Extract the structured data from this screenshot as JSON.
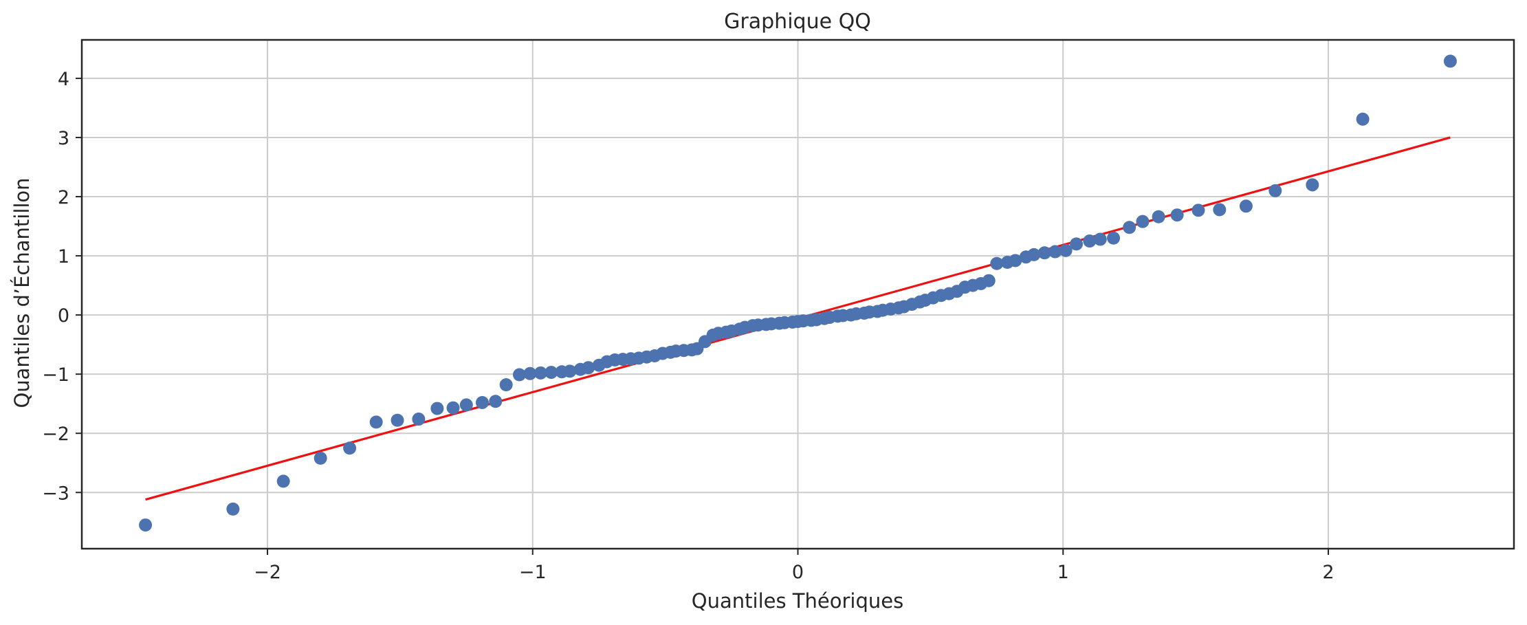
{
  "chart_data": {
    "type": "scatter",
    "title": "Graphique QQ",
    "xlabel": "Quantiles Théoriques",
    "ylabel": "Quantiles d’Échantillon",
    "xlim": [
      -2.7,
      2.7
    ],
    "ylim": [
      -3.95,
      4.65
    ],
    "xticks": [
      -2,
      -1,
      0,
      1,
      2
    ],
    "xtick_labels": [
      "−2",
      "−1",
      "0",
      "1",
      "2"
    ],
    "yticks": [
      -3,
      -2,
      -1,
      0,
      1,
      2,
      3,
      4
    ],
    "ytick_labels": [
      "−3",
      "−2",
      "−1",
      "0",
      "1",
      "2",
      "3",
      "4"
    ],
    "grid": true,
    "legend": "none",
    "colors": {
      "points": "#4c72b0",
      "line": "#ee1111",
      "grid": "#cccccc",
      "frame": "#262626"
    },
    "series": [
      {
        "type": "scatter",
        "points": [
          [
            -2.46,
            -3.55
          ],
          [
            -2.13,
            -3.28
          ],
          [
            -1.94,
            -2.81
          ],
          [
            -1.8,
            -2.42
          ],
          [
            -1.69,
            -2.25
          ],
          [
            -1.59,
            -1.81
          ],
          [
            -1.51,
            -1.78
          ],
          [
            -1.43,
            -1.76
          ],
          [
            -1.36,
            -1.58
          ],
          [
            -1.3,
            -1.57
          ],
          [
            -1.25,
            -1.52
          ],
          [
            -1.19,
            -1.48
          ],
          [
            -1.14,
            -1.46
          ],
          [
            -1.1,
            -1.18
          ],
          [
            -1.05,
            -1.01
          ],
          [
            -1.01,
            -0.99
          ],
          [
            -0.97,
            -0.98
          ],
          [
            -0.93,
            -0.97
          ],
          [
            -0.89,
            -0.96
          ],
          [
            -0.86,
            -0.95
          ],
          [
            -0.82,
            -0.92
          ],
          [
            -0.79,
            -0.89
          ],
          [
            -0.75,
            -0.85
          ],
          [
            -0.72,
            -0.79
          ],
          [
            -0.69,
            -0.76
          ],
          [
            -0.66,
            -0.75
          ],
          [
            -0.63,
            -0.74
          ],
          [
            -0.6,
            -0.73
          ],
          [
            -0.57,
            -0.71
          ],
          [
            -0.54,
            -0.69
          ],
          [
            -0.51,
            -0.65
          ],
          [
            -0.48,
            -0.63
          ],
          [
            -0.46,
            -0.61
          ],
          [
            -0.43,
            -0.6
          ],
          [
            -0.4,
            -0.59
          ],
          [
            -0.38,
            -0.57
          ],
          [
            -0.35,
            -0.45
          ],
          [
            -0.32,
            -0.34
          ],
          [
            -0.3,
            -0.31
          ],
          [
            -0.27,
            -0.29
          ],
          [
            -0.25,
            -0.27
          ],
          [
            -0.22,
            -0.24
          ],
          [
            -0.2,
            -0.21
          ],
          [
            -0.17,
            -0.18
          ],
          [
            -0.15,
            -0.17
          ],
          [
            -0.12,
            -0.16
          ],
          [
            -0.1,
            -0.15
          ],
          [
            -0.07,
            -0.14
          ],
          [
            -0.05,
            -0.13
          ],
          [
            -0.02,
            -0.12
          ],
          [
            0.0,
            -0.11
          ],
          [
            0.02,
            -0.1
          ],
          [
            0.05,
            -0.09
          ],
          [
            0.07,
            -0.08
          ],
          [
            0.1,
            -0.06
          ],
          [
            0.12,
            -0.04
          ],
          [
            0.15,
            -0.02
          ],
          [
            0.17,
            -0.01
          ],
          [
            0.2,
            0.0
          ],
          [
            0.22,
            0.02
          ],
          [
            0.25,
            0.03
          ],
          [
            0.27,
            0.05
          ],
          [
            0.3,
            0.06
          ],
          [
            0.32,
            0.08
          ],
          [
            0.35,
            0.1
          ],
          [
            0.38,
            0.12
          ],
          [
            0.4,
            0.14
          ],
          [
            0.43,
            0.18
          ],
          [
            0.46,
            0.22
          ],
          [
            0.48,
            0.25
          ],
          [
            0.51,
            0.29
          ],
          [
            0.54,
            0.33
          ],
          [
            0.57,
            0.36
          ],
          [
            0.6,
            0.4
          ],
          [
            0.63,
            0.47
          ],
          [
            0.66,
            0.5
          ],
          [
            0.69,
            0.53
          ],
          [
            0.72,
            0.58
          ],
          [
            0.75,
            0.87
          ],
          [
            0.79,
            0.89
          ],
          [
            0.82,
            0.92
          ],
          [
            0.86,
            0.98
          ],
          [
            0.89,
            1.02
          ],
          [
            0.93,
            1.05
          ],
          [
            0.97,
            1.07
          ],
          [
            1.01,
            1.09
          ],
          [
            1.05,
            1.2
          ],
          [
            1.1,
            1.25
          ],
          [
            1.14,
            1.28
          ],
          [
            1.19,
            1.3
          ],
          [
            1.25,
            1.48
          ],
          [
            1.3,
            1.58
          ],
          [
            1.36,
            1.66
          ],
          [
            1.43,
            1.69
          ],
          [
            1.51,
            1.77
          ],
          [
            1.59,
            1.78
          ],
          [
            1.69,
            1.84
          ],
          [
            1.8,
            2.1
          ],
          [
            1.94,
            2.2
          ],
          [
            2.13,
            3.31
          ],
          [
            2.46,
            4.29
          ]
        ]
      },
      {
        "type": "line",
        "points": [
          [
            -2.46,
            -3.12
          ],
          [
            2.46,
            3.0
          ]
        ]
      }
    ]
  }
}
